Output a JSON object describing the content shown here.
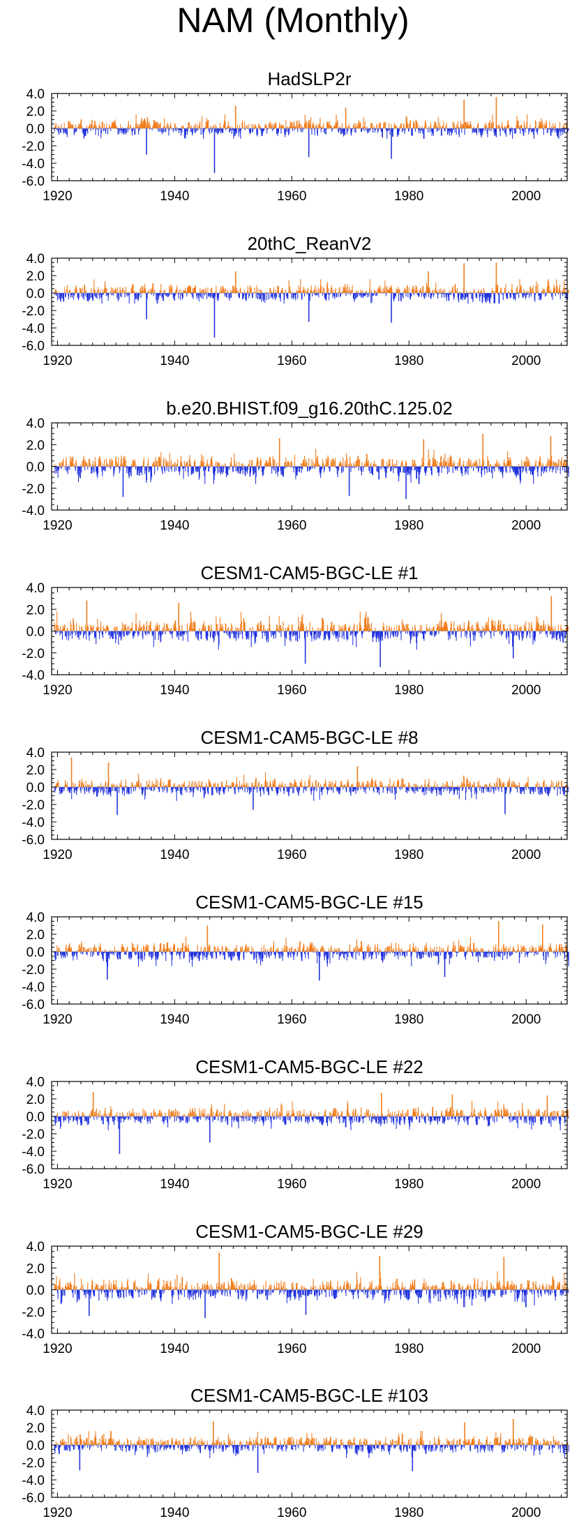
{
  "page_title": "NAM (Monthly)",
  "colors": {
    "positive": "#f07d1c",
    "negative": "#2233dd",
    "frame": "#000000"
  },
  "chart_data": [
    {
      "type": "bar",
      "title": "HadSLP2r",
      "x_range": [
        1919,
        2007
      ],
      "ylim": [
        -6,
        4
      ],
      "yticks": [
        4,
        -6,
        2
      ],
      "xticks": [
        1920,
        1940,
        1960,
        1980,
        2000
      ],
      "ytick_labels": [
        "4.0",
        "2.0",
        "0.0",
        "-2.0",
        "-4.0",
        "-6.0"
      ],
      "xtick_labels": [
        "1920",
        "1940",
        "1960",
        "1980",
        "2000"
      ],
      "pos_max": 1.6,
      "neg_max": 1.2,
      "seed": 11,
      "spikes": [
        {
          "x": 1946.8,
          "y": -5.1
        },
        {
          "x": 1989.4,
          "y": 3.3
        },
        {
          "x": 1994.9,
          "y": 3.6
        },
        {
          "x": 1935.2,
          "y": -3.0
        },
        {
          "x": 1962.9,
          "y": -3.3
        },
        {
          "x": 1977.0,
          "y": -3.5
        },
        {
          "x": 1950.4,
          "y": 2.6
        },
        {
          "x": 1969.2,
          "y": 2.4
        }
      ]
    },
    {
      "type": "bar",
      "title": "20thC_ReanV2",
      "x_range": [
        1919,
        2007
      ],
      "ylim": [
        -6,
        4
      ],
      "yticks": [
        4,
        -6,
        2
      ],
      "xticks": [
        1920,
        1940,
        1960,
        1980,
        2000
      ],
      "ytick_labels": [
        "4.0",
        "2.0",
        "0.0",
        "-2.0",
        "-4.0",
        "-6.0"
      ],
      "xtick_labels": [
        "1920",
        "1940",
        "1960",
        "1980",
        "2000"
      ],
      "pos_max": 1.6,
      "neg_max": 1.2,
      "seed": 23,
      "spikes": [
        {
          "x": 1946.8,
          "y": -5.1
        },
        {
          "x": 1989.4,
          "y": 3.4
        },
        {
          "x": 1994.9,
          "y": 3.5
        },
        {
          "x": 1935.2,
          "y": -3.0
        },
        {
          "x": 1962.9,
          "y": -3.3
        },
        {
          "x": 1977.0,
          "y": -3.4
        },
        {
          "x": 1950.4,
          "y": 2.5
        },
        {
          "x": 1983.3,
          "y": 2.5
        }
      ]
    },
    {
      "type": "bar",
      "title": "b.e20.BHIST.f09_g16.20thC.125.02",
      "x_range": [
        1919,
        2007
      ],
      "ylim": [
        -4,
        4
      ],
      "yticks": [
        4,
        -4,
        2
      ],
      "xticks": [
        1920,
        1940,
        1960,
        1980,
        2000
      ],
      "ytick_labels": [
        "4.0",
        "2.0",
        "0.0",
        "-2.0",
        "-4.0"
      ],
      "xtick_labels": [
        "1920",
        "1940",
        "1960",
        "1980",
        "2000"
      ],
      "pos_max": 1.8,
      "neg_max": 1.6,
      "seed": 37,
      "spikes": [
        {
          "x": 1992.6,
          "y": 3.0
        },
        {
          "x": 2004.2,
          "y": 2.8
        },
        {
          "x": 1957.9,
          "y": 2.6
        },
        {
          "x": 1969.8,
          "y": -2.7
        },
        {
          "x": 1931.2,
          "y": -2.8
        },
        {
          "x": 1979.5,
          "y": -3.0
        },
        {
          "x": 1982.5,
          "y": 2.5
        }
      ]
    },
    {
      "type": "bar",
      "title": "CESM1-CAM5-BGC-LE #1",
      "x_range": [
        1919,
        2007
      ],
      "ylim": [
        -4,
        4
      ],
      "yticks": [
        4,
        -4,
        2
      ],
      "xticks": [
        1920,
        1940,
        1960,
        1980,
        2000
      ],
      "ytick_labels": [
        "4.0",
        "2.0",
        "0.0",
        "-2.0",
        "-4.0"
      ],
      "xtick_labels": [
        "1920",
        "1940",
        "1960",
        "1980",
        "2000"
      ],
      "pos_max": 1.8,
      "neg_max": 1.7,
      "seed": 41,
      "spikes": [
        {
          "x": 2004.3,
          "y": 3.2
        },
        {
          "x": 1975.1,
          "y": -3.3
        },
        {
          "x": 1925.0,
          "y": 2.8
        },
        {
          "x": 1962.3,
          "y": -3.0
        },
        {
          "x": 1997.8,
          "y": -2.5
        },
        {
          "x": 1940.7,
          "y": 2.6
        }
      ]
    },
    {
      "type": "bar",
      "title": "CESM1-CAM5-BGC-LE #8",
      "x_range": [
        1919,
        2007
      ],
      "ylim": [
        -6,
        4
      ],
      "yticks": [
        4,
        -6,
        2
      ],
      "xticks": [
        1920,
        1940,
        1960,
        1980,
        2000
      ],
      "ytick_labels": [
        "4.0",
        "2.0",
        "0.0",
        "-2.0",
        "-4.0",
        "-6.0"
      ],
      "xtick_labels": [
        "1920",
        "1940",
        "1960",
        "1980",
        "2000"
      ],
      "pos_max": 1.7,
      "neg_max": 1.6,
      "seed": 53,
      "spikes": [
        {
          "x": 1922.4,
          "y": 3.4
        },
        {
          "x": 1930.2,
          "y": -3.2
        },
        {
          "x": 1996.4,
          "y": -3.1
        },
        {
          "x": 1928.7,
          "y": 2.8
        },
        {
          "x": 1953.4,
          "y": -2.6
        },
        {
          "x": 1971.2,
          "y": 2.4
        }
      ]
    },
    {
      "type": "bar",
      "title": "CESM1-CAM5-BGC-LE #15",
      "x_range": [
        1919,
        2007
      ],
      "ylim": [
        -6,
        4
      ],
      "yticks": [
        4,
        -6,
        2
      ],
      "xticks": [
        1920,
        1940,
        1960,
        1980,
        2000
      ],
      "ytick_labels": [
        "4.0",
        "2.0",
        "0.0",
        "-2.0",
        "-4.0",
        "-6.0"
      ],
      "xtick_labels": [
        "1920",
        "1940",
        "1960",
        "1980",
        "2000"
      ],
      "pos_max": 1.7,
      "neg_max": 1.7,
      "seed": 67,
      "spikes": [
        {
          "x": 1995.3,
          "y": 3.5
        },
        {
          "x": 2002.8,
          "y": 3.1
        },
        {
          "x": 1928.5,
          "y": -3.2
        },
        {
          "x": 1964.7,
          "y": -3.3
        },
        {
          "x": 1945.6,
          "y": 3.0
        },
        {
          "x": 1986.1,
          "y": -2.9
        }
      ]
    },
    {
      "type": "bar",
      "title": "CESM1-CAM5-BGC-LE #22",
      "x_range": [
        1919,
        2007
      ],
      "ylim": [
        -6,
        4
      ],
      "yticks": [
        4,
        -6,
        2
      ],
      "xticks": [
        1920,
        1940,
        1960,
        1980,
        2000
      ],
      "ytick_labels": [
        "4.0",
        "2.0",
        "0.0",
        "-2.0",
        "-4.0",
        "-6.0"
      ],
      "xtick_labels": [
        "1920",
        "1940",
        "1960",
        "1980",
        "2000"
      ],
      "pos_max": 1.8,
      "neg_max": 1.6,
      "seed": 79,
      "spikes": [
        {
          "x": 1930.6,
          "y": -4.3
        },
        {
          "x": 1926.1,
          "y": 2.8
        },
        {
          "x": 1975.3,
          "y": 2.7
        },
        {
          "x": 1946.0,
          "y": -3.0
        },
        {
          "x": 2003.6,
          "y": 2.4
        },
        {
          "x": 1987.4,
          "y": 2.5
        }
      ]
    },
    {
      "type": "bar",
      "title": "CESM1-CAM5-BGC-LE #29",
      "x_range": [
        1919,
        2007
      ],
      "ylim": [
        -4,
        4
      ],
      "yticks": [
        4,
        -4,
        2
      ],
      "xticks": [
        1920,
        1940,
        1960,
        1980,
        2000
      ],
      "ytick_labels": [
        "4.0",
        "2.0",
        "0.0",
        "-2.0",
        "-4.0"
      ],
      "xtick_labels": [
        "1920",
        "1940",
        "1960",
        "1980",
        "2000"
      ],
      "pos_max": 1.7,
      "neg_max": 1.6,
      "seed": 83,
      "spikes": [
        {
          "x": 1947.6,
          "y": 3.4
        },
        {
          "x": 1975.0,
          "y": 3.1
        },
        {
          "x": 1925.4,
          "y": -2.4
        },
        {
          "x": 1945.2,
          "y": -2.6
        },
        {
          "x": 1996.2,
          "y": 3.0
        },
        {
          "x": 1962.4,
          "y": -2.3
        }
      ]
    },
    {
      "type": "bar",
      "title": "CESM1-CAM5-BGC-LE #103",
      "x_range": [
        1919,
        2007
      ],
      "ylim": [
        -6,
        4
      ],
      "yticks": [
        4,
        -6,
        2
      ],
      "xticks": [
        1920,
        1940,
        1960,
        1980,
        2000
      ],
      "ytick_labels": [
        "4.0",
        "2.0",
        "0.0",
        "-2.0",
        "-4.0",
        "-6.0"
      ],
      "xtick_labels": [
        "1920",
        "1940",
        "1960",
        "1980",
        "2000"
      ],
      "pos_max": 1.6,
      "neg_max": 1.5,
      "seed": 97,
      "spikes": [
        {
          "x": 1997.8,
          "y": 3.0
        },
        {
          "x": 1923.8,
          "y": -2.9
        },
        {
          "x": 1954.2,
          "y": -3.2
        },
        {
          "x": 1946.6,
          "y": 2.7
        },
        {
          "x": 1980.6,
          "y": -3.0
        },
        {
          "x": 1989.5,
          "y": 2.6
        }
      ]
    }
  ]
}
